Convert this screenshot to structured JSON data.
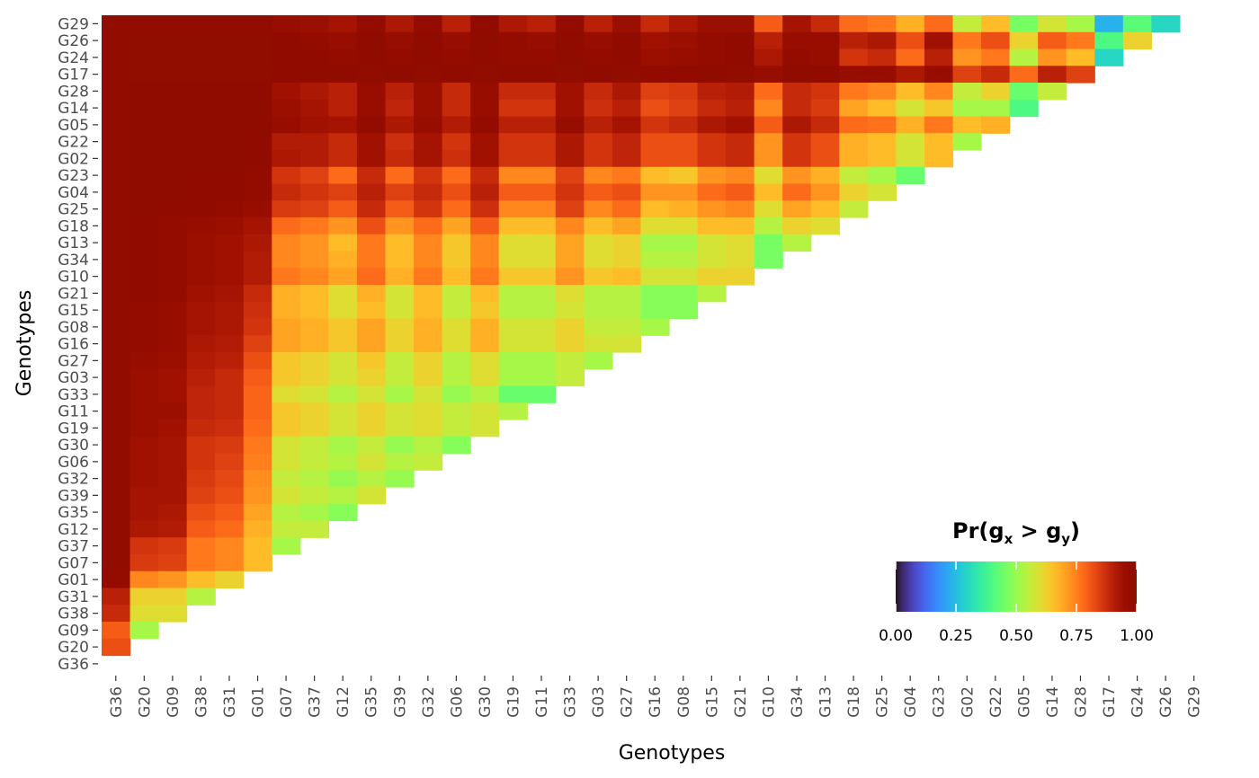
{
  "chart_data": {
    "type": "heatmap",
    "xlabel": "Genotypes",
    "ylabel": "Genotypes",
    "x_categories": [
      "G36",
      "G20",
      "G09",
      "G38",
      "G31",
      "G01",
      "G07",
      "G37",
      "G12",
      "G35",
      "G39",
      "G32",
      "G06",
      "G30",
      "G19",
      "G11",
      "G33",
      "G03",
      "G27",
      "G16",
      "G08",
      "G15",
      "G21",
      "G10",
      "G34",
      "G13",
      "G18",
      "G25",
      "G04",
      "G23",
      "G02",
      "G22",
      "G05",
      "G14",
      "G28",
      "G17",
      "G24",
      "G26",
      "G29"
    ],
    "y_categories_top_to_bottom": [
      "G29",
      "G26",
      "G24",
      "G17",
      "G28",
      "G14",
      "G05",
      "G22",
      "G02",
      "G23",
      "G04",
      "G25",
      "G18",
      "G13",
      "G34",
      "G10",
      "G21",
      "G15",
      "G08",
      "G16",
      "G27",
      "G03",
      "G33",
      "G11",
      "G19",
      "G30",
      "G06",
      "G32",
      "G39",
      "G35",
      "G12",
      "G37",
      "G07",
      "G01",
      "G31",
      "G38",
      "G09",
      "G20",
      "G36"
    ],
    "values_rows_top_to_bottom": [
      [
        1.0,
        1.0,
        1.0,
        1.0,
        1.0,
        1.0,
        0.96,
        0.95,
        0.93,
        0.97,
        0.92,
        0.97,
        0.9,
        0.98,
        0.92,
        0.9,
        0.97,
        0.9,
        0.95,
        0.88,
        0.92,
        0.95,
        0.95,
        0.8,
        0.93,
        0.88,
        0.78,
        0.76,
        0.68,
        0.78,
        0.56,
        0.66,
        0.46,
        0.58,
        0.52,
        0.23,
        0.42,
        0.3
      ],
      [
        1.0,
        1.0,
        1.0,
        1.0,
        1.0,
        1.0,
        0.98,
        0.97,
        0.96,
        0.99,
        0.96,
        0.99,
        0.96,
        0.99,
        0.97,
        0.96,
        0.99,
        0.96,
        0.98,
        0.94,
        0.95,
        0.97,
        0.98,
        0.9,
        0.96,
        0.96,
        0.9,
        0.92,
        0.82,
        0.94,
        0.76,
        0.82,
        0.62,
        0.8,
        0.76,
        0.4,
        0.62
      ],
      [
        1.0,
        1.0,
        1.0,
        1.0,
        1.0,
        1.0,
        0.98,
        0.98,
        0.97,
        0.99,
        0.97,
        0.99,
        0.97,
        0.99,
        0.97,
        0.97,
        0.99,
        0.97,
        0.98,
        0.95,
        0.96,
        0.97,
        0.98,
        0.92,
        0.97,
        0.96,
        0.86,
        0.88,
        0.78,
        0.9,
        0.72,
        0.76,
        0.54,
        0.72,
        0.66,
        0.3
      ],
      [
        1.0,
        1.0,
        1.0,
        1.0,
        1.0,
        1.0,
        0.99,
        0.99,
        0.99,
        1.0,
        0.99,
        1.0,
        0.99,
        1.0,
        0.99,
        0.99,
        1.0,
        0.99,
        1.0,
        0.98,
        0.98,
        0.99,
        1.0,
        0.96,
        0.99,
        0.98,
        0.96,
        0.96,
        0.92,
        0.96,
        0.84,
        0.88,
        0.78,
        0.9,
        0.84
      ],
      [
        1.0,
        0.99,
        0.99,
        0.99,
        0.99,
        0.99,
        0.94,
        0.92,
        0.9,
        0.96,
        0.9,
        0.95,
        0.88,
        0.96,
        0.88,
        0.88,
        0.94,
        0.88,
        0.92,
        0.84,
        0.85,
        0.9,
        0.91,
        0.78,
        0.88,
        0.86,
        0.76,
        0.74,
        0.66,
        0.74,
        0.56,
        0.62,
        0.44,
        0.56
      ],
      [
        1.0,
        0.99,
        0.99,
        0.99,
        0.99,
        0.99,
        0.95,
        0.93,
        0.9,
        0.96,
        0.89,
        0.95,
        0.88,
        0.96,
        0.86,
        0.86,
        0.94,
        0.87,
        0.9,
        0.82,
        0.84,
        0.88,
        0.9,
        0.74,
        0.88,
        0.85,
        0.7,
        0.66,
        0.58,
        0.64,
        0.52,
        0.52,
        0.4
      ],
      [
        1.0,
        0.99,
        0.99,
        0.99,
        0.99,
        0.99,
        0.96,
        0.94,
        0.93,
        0.97,
        0.92,
        0.96,
        0.91,
        0.97,
        0.9,
        0.9,
        0.96,
        0.9,
        0.93,
        0.86,
        0.88,
        0.92,
        0.94,
        0.8,
        0.92,
        0.88,
        0.78,
        0.77,
        0.68,
        0.76,
        0.66,
        0.68
      ],
      [
        1.0,
        0.99,
        0.99,
        0.99,
        0.99,
        0.98,
        0.91,
        0.91,
        0.88,
        0.94,
        0.87,
        0.93,
        0.86,
        0.94,
        0.86,
        0.86,
        0.92,
        0.86,
        0.89,
        0.82,
        0.82,
        0.86,
        0.88,
        0.72,
        0.86,
        0.82,
        0.68,
        0.66,
        0.58,
        0.66,
        0.52
      ],
      [
        1.0,
        0.99,
        0.99,
        0.99,
        0.99,
        0.98,
        0.92,
        0.91,
        0.88,
        0.94,
        0.88,
        0.93,
        0.87,
        0.94,
        0.86,
        0.86,
        0.92,
        0.86,
        0.89,
        0.82,
        0.82,
        0.86,
        0.88,
        0.72,
        0.86,
        0.82,
        0.68,
        0.66,
        0.58,
        0.66
      ],
      [
        1.0,
        0.99,
        0.99,
        0.98,
        0.98,
        0.97,
        0.86,
        0.84,
        0.78,
        0.88,
        0.78,
        0.86,
        0.78,
        0.88,
        0.74,
        0.74,
        0.84,
        0.74,
        0.76,
        0.66,
        0.64,
        0.72,
        0.74,
        0.6,
        0.72,
        0.68,
        0.56,
        0.52,
        0.44
      ],
      [
        1.0,
        0.99,
        0.99,
        0.98,
        0.98,
        0.97,
        0.88,
        0.86,
        0.84,
        0.9,
        0.84,
        0.88,
        0.82,
        0.9,
        0.8,
        0.8,
        0.86,
        0.8,
        0.82,
        0.72,
        0.72,
        0.78,
        0.8,
        0.66,
        0.78,
        0.72,
        0.62,
        0.58
      ],
      [
        1.0,
        0.99,
        0.98,
        0.98,
        0.97,
        0.96,
        0.85,
        0.84,
        0.8,
        0.88,
        0.8,
        0.86,
        0.78,
        0.87,
        0.74,
        0.74,
        0.84,
        0.74,
        0.78,
        0.66,
        0.68,
        0.72,
        0.74,
        0.6,
        0.7,
        0.66,
        0.56
      ],
      [
        1.0,
        0.98,
        0.97,
        0.96,
        0.95,
        0.93,
        0.78,
        0.76,
        0.72,
        0.82,
        0.72,
        0.78,
        0.7,
        0.8,
        0.66,
        0.66,
        0.74,
        0.66,
        0.7,
        0.6,
        0.6,
        0.66,
        0.66,
        0.54,
        0.62,
        0.6
      ],
      [
        1.0,
        0.98,
        0.97,
        0.95,
        0.94,
        0.92,
        0.74,
        0.72,
        0.66,
        0.76,
        0.66,
        0.74,
        0.64,
        0.74,
        0.6,
        0.6,
        0.7,
        0.6,
        0.62,
        0.52,
        0.52,
        0.58,
        0.6,
        0.46,
        0.54
      ],
      [
        1.0,
        0.98,
        0.97,
        0.95,
        0.94,
        0.91,
        0.74,
        0.72,
        0.68,
        0.76,
        0.66,
        0.74,
        0.64,
        0.74,
        0.6,
        0.6,
        0.7,
        0.6,
        0.62,
        0.54,
        0.54,
        0.58,
        0.6,
        0.46
      ],
      [
        1.0,
        0.98,
        0.97,
        0.95,
        0.94,
        0.91,
        0.76,
        0.74,
        0.7,
        0.78,
        0.68,
        0.76,
        0.66,
        0.76,
        0.64,
        0.64,
        0.72,
        0.64,
        0.66,
        0.58,
        0.58,
        0.62,
        0.62
      ],
      [
        1.0,
        0.98,
        0.97,
        0.94,
        0.93,
        0.88,
        0.68,
        0.66,
        0.6,
        0.68,
        0.58,
        0.66,
        0.56,
        0.66,
        0.54,
        0.54,
        0.6,
        0.54,
        0.54,
        0.48,
        0.48,
        0.54
      ],
      [
        1.0,
        0.97,
        0.96,
        0.93,
        0.92,
        0.87,
        0.68,
        0.66,
        0.6,
        0.66,
        0.58,
        0.66,
        0.56,
        0.64,
        0.54,
        0.54,
        0.58,
        0.54,
        0.54,
        0.48,
        0.48
      ],
      [
        1.0,
        0.97,
        0.96,
        0.93,
        0.92,
        0.86,
        0.7,
        0.68,
        0.64,
        0.7,
        0.62,
        0.68,
        0.6,
        0.68,
        0.58,
        0.58,
        0.62,
        0.56,
        0.56,
        0.52
      ],
      [
        1.0,
        0.97,
        0.96,
        0.92,
        0.91,
        0.84,
        0.7,
        0.68,
        0.64,
        0.7,
        0.62,
        0.68,
        0.6,
        0.68,
        0.58,
        0.58,
        0.62,
        0.58,
        0.58
      ],
      [
        1.0,
        0.96,
        0.95,
        0.91,
        0.9,
        0.82,
        0.64,
        0.62,
        0.58,
        0.64,
        0.56,
        0.62,
        0.54,
        0.6,
        0.52,
        0.52,
        0.56,
        0.52
      ],
      [
        1.0,
        0.95,
        0.94,
        0.9,
        0.88,
        0.8,
        0.64,
        0.62,
        0.58,
        0.62,
        0.56,
        0.62,
        0.54,
        0.6,
        0.52,
        0.52,
        0.56
      ],
      [
        1.0,
        0.95,
        0.94,
        0.89,
        0.88,
        0.79,
        0.6,
        0.58,
        0.54,
        0.58,
        0.52,
        0.58,
        0.5,
        0.54,
        0.44,
        0.44
      ],
      [
        1.0,
        0.95,
        0.95,
        0.89,
        0.88,
        0.79,
        0.64,
        0.62,
        0.58,
        0.62,
        0.58,
        0.6,
        0.56,
        0.58,
        0.54
      ],
      [
        1.0,
        0.95,
        0.94,
        0.88,
        0.87,
        0.78,
        0.64,
        0.62,
        0.58,
        0.62,
        0.58,
        0.6,
        0.56,
        0.58
      ],
      [
        1.0,
        0.94,
        0.93,
        0.86,
        0.85,
        0.76,
        0.58,
        0.56,
        0.52,
        0.56,
        0.5,
        0.54,
        0.48
      ],
      [
        1.0,
        0.94,
        0.93,
        0.86,
        0.84,
        0.75,
        0.58,
        0.56,
        0.54,
        0.58,
        0.54,
        0.56
      ],
      [
        1.0,
        0.94,
        0.93,
        0.85,
        0.83,
        0.73,
        0.56,
        0.54,
        0.5,
        0.54,
        0.5
      ],
      [
        1.0,
        0.93,
        0.93,
        0.84,
        0.82,
        0.72,
        0.58,
        0.56,
        0.54,
        0.58
      ],
      [
        1.0,
        0.93,
        0.92,
        0.82,
        0.8,
        0.7,
        0.54,
        0.52,
        0.48
      ],
      [
        1.0,
        0.92,
        0.91,
        0.8,
        0.78,
        0.68,
        0.56,
        0.56
      ],
      [
        1.0,
        0.86,
        0.85,
        0.76,
        0.74,
        0.66,
        0.52
      ],
      [
        1.0,
        0.85,
        0.84,
        0.76,
        0.74,
        0.66
      ],
      [
        0.97,
        0.74,
        0.72,
        0.66,
        0.62
      ],
      [
        0.9,
        0.62,
        0.62,
        0.54
      ],
      [
        0.88,
        0.6,
        0.6
      ],
      [
        0.8,
        0.52
      ],
      [
        0.82
      ],
      []
    ],
    "legend": {
      "title_base": "Pr(g",
      "title_sub_x": "x",
      "title_gt": " > g",
      "title_sub_y": "y",
      "title_end": ")",
      "ticks": [
        "0.00",
        "0.25",
        "0.50",
        "0.75",
        "1.00"
      ],
      "tick_values": [
        0,
        0.25,
        0.5,
        0.75,
        1.0
      ],
      "range": [
        0,
        1
      ],
      "placement": "bottom-right",
      "colormap": "turbo"
    },
    "grid": false
  }
}
